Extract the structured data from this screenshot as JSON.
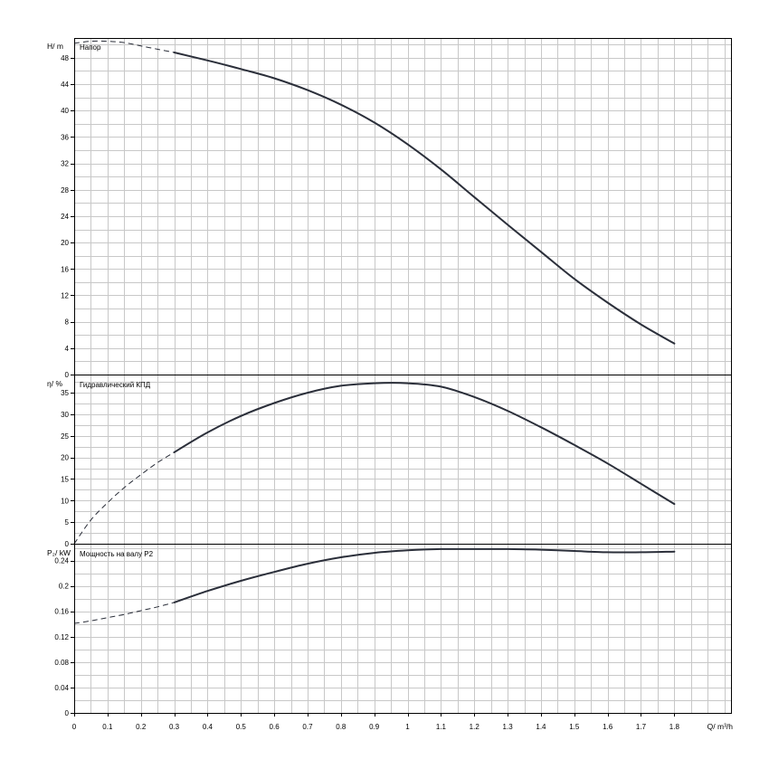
{
  "chart_data": [
    {
      "type": "line",
      "panel": "head",
      "title": "Напор",
      "ylabel": "H/ m",
      "ylim": [
        0,
        51
      ],
      "y_ticks": [
        0,
        4,
        8,
        12,
        16,
        20,
        24,
        28,
        32,
        36,
        40,
        44,
        48
      ],
      "grid": true,
      "series": [
        {
          "line_style": "dashed",
          "x": [
            0,
            0.05,
            0.1,
            0.15,
            0.2,
            0.25,
            0.3
          ],
          "y": [
            50.2,
            50.5,
            50.5,
            50.3,
            49.8,
            49.3,
            48.8
          ]
        },
        {
          "line_style": "solid",
          "x": [
            0.3,
            0.4,
            0.5,
            0.6,
            0.7,
            0.8,
            0.9,
            1.0,
            1.1,
            1.2,
            1.3,
            1.4,
            1.5,
            1.6,
            1.7,
            1.8
          ],
          "y": [
            48.8,
            47.6,
            46.3,
            44.9,
            43.1,
            40.9,
            38.2,
            34.9,
            31.1,
            26.9,
            22.7,
            18.6,
            14.5,
            10.9,
            7.6,
            4.7
          ]
        }
      ]
    },
    {
      "type": "line",
      "panel": "efficiency",
      "title": "Гидравлический КПД",
      "ylabel": "η/ %",
      "ylim": [
        0,
        39
      ],
      "y_ticks": [
        0,
        5,
        10,
        15,
        20,
        25,
        30,
        35
      ],
      "grid": true,
      "series": [
        {
          "line_style": "dashed",
          "x": [
            0,
            0.05,
            0.1,
            0.15,
            0.2,
            0.25,
            0.3
          ],
          "y": [
            0,
            5.5,
            9.5,
            13.0,
            16.0,
            18.8,
            21.2
          ]
        },
        {
          "line_style": "solid",
          "x": [
            0.3,
            0.4,
            0.5,
            0.6,
            0.7,
            0.8,
            0.9,
            1.0,
            1.1,
            1.2,
            1.3,
            1.4,
            1.5,
            1.6,
            1.7,
            1.8
          ],
          "y": [
            21.2,
            25.8,
            29.6,
            32.6,
            35.0,
            36.6,
            37.2,
            37.2,
            36.4,
            34.0,
            30.8,
            27.0,
            22.9,
            18.6,
            13.9,
            9.2
          ]
        }
      ]
    },
    {
      "type": "line",
      "panel": "power",
      "title": "Мощность на валу P2",
      "ylabel": "P₂/ kW",
      "ylim": [
        0,
        0.265
      ],
      "y_ticks": [
        0,
        0.04,
        0.08,
        0.12,
        0.16,
        0.2,
        0.24
      ],
      "y_tick_labels": [
        "0",
        "0.04",
        "0.08",
        "0.12",
        "0.16",
        "0.2",
        "0.24"
      ],
      "xlabel": "Q/ m³/h",
      "xlim": [
        0,
        1.97
      ],
      "x_ticks": [
        0,
        0.1,
        0.2,
        0.3,
        0.4,
        0.5,
        0.6,
        0.7,
        0.8,
        0.9,
        1,
        1.1,
        1.2,
        1.3,
        1.4,
        1.5,
        1.6,
        1.7,
        1.8
      ],
      "x_tick_labels": [
        "0",
        "0.1",
        "0.2",
        "0.3",
        "0.4",
        "0.5",
        "0.6",
        "0.7",
        "0.8",
        "0.9",
        "1",
        "1.1",
        "1.2",
        "1.3",
        "1.4",
        "1.5",
        "1.6",
        "1.7",
        "1.8"
      ],
      "grid": true,
      "series": [
        {
          "line_style": "dashed",
          "x": [
            0,
            0.05,
            0.1,
            0.15,
            0.2,
            0.25,
            0.3
          ],
          "y": [
            0.141,
            0.145,
            0.15,
            0.155,
            0.161,
            0.167,
            0.174
          ]
        },
        {
          "line_style": "solid",
          "x": [
            0.3,
            0.4,
            0.5,
            0.6,
            0.7,
            0.8,
            0.9,
            1.0,
            1.1,
            1.2,
            1.3,
            1.4,
            1.5,
            1.6,
            1.7,
            1.8
          ],
          "y": [
            0.174,
            0.192,
            0.208,
            0.222,
            0.235,
            0.245,
            0.252,
            0.256,
            0.258,
            0.258,
            0.258,
            0.257,
            0.255,
            0.253,
            0.253,
            0.254
          ]
        }
      ]
    }
  ]
}
